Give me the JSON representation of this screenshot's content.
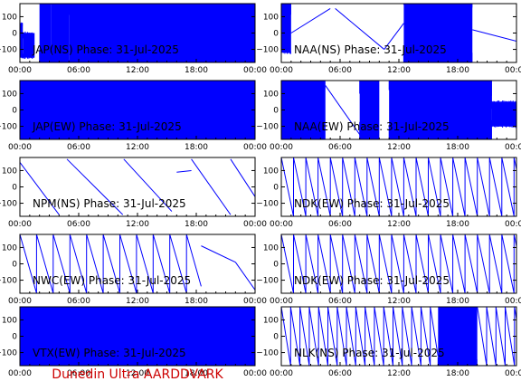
{
  "footer": "Dunedin Ultra AARDDVARK",
  "colors": {
    "trace": "#0000ff",
    "axis": "#000000",
    "footer": "#cc0000",
    "background": "#ffffff"
  },
  "chart_data": [
    {
      "type": "line",
      "title": "JAP(NS) Phase: 31-Jul-2025",
      "ylim": [
        -180,
        180
      ],
      "yticks": [
        100,
        0,
        -100
      ],
      "xticks": [
        "00:00",
        "06:00",
        "12:00",
        "18:00",
        "00:00"
      ],
      "series": [
        {
          "segments": [
            {
              "kind": "noise",
              "x": [
                0.0,
                0.3
              ],
              "y": [
                -150,
                60
              ]
            },
            {
              "kind": "noise",
              "x": [
                0.3,
                1.5
              ],
              "y": [
                -150,
                0
              ]
            },
            {
              "kind": "noise",
              "x": [
                2.0,
                3.2
              ],
              "y": [
                -180,
                180
              ]
            },
            {
              "kind": "noise",
              "x": [
                3.2,
                5.0
              ],
              "y": [
                -180,
                180
              ]
            },
            {
              "kind": "noise",
              "x": [
                5.0,
                24.0
              ],
              "y": [
                -180,
                180
              ]
            }
          ]
        }
      ]
    },
    {
      "type": "line",
      "title": "NAA(NS) Phase: 31-Jul-2025",
      "ylim": [
        -180,
        180
      ],
      "yticks": [
        100,
        0,
        -100
      ],
      "xticks": [
        "00:00",
        "06:00",
        "12:00",
        "18:00",
        "00:00"
      ],
      "series": [
        {
          "segments": [
            {
              "kind": "noise",
              "x": [
                0.0,
                1.0
              ],
              "y": [
                -120,
                180
              ]
            },
            {
              "kind": "line",
              "x": [
                1.0,
                5.0
              ],
              "y": [
                0,
                150
              ]
            },
            {
              "kind": "line",
              "x": [
                5.5,
                10.5
              ],
              "y": [
                150,
                -100
              ]
            },
            {
              "kind": "line",
              "x": [
                10.5,
                12.5
              ],
              "y": [
                -100,
                60
              ]
            },
            {
              "kind": "noise",
              "x": [
                12.5,
                19.5
              ],
              "y": [
                -180,
                180
              ]
            },
            {
              "kind": "line",
              "x": [
                19.5,
                24.0
              ],
              "y": [
                20,
                -50
              ]
            }
          ]
        }
      ]
    },
    {
      "type": "line",
      "title": "JAP(EW) Phase: 31-Jul-2025",
      "ylim": [
        -180,
        180
      ],
      "yticks": [
        100,
        0,
        -100
      ],
      "xticks": [
        "00:00",
        "06:00",
        "12:00",
        "18:00",
        "00:00"
      ],
      "series": [
        {
          "segments": [
            {
              "kind": "noise",
              "x": [
                0.0,
                24.0
              ],
              "y": [
                -180,
                180
              ]
            }
          ]
        }
      ]
    },
    {
      "type": "line",
      "title": "NAA(EW) Phase: 31-Jul-2025",
      "ylim": [
        -180,
        180
      ],
      "yticks": [
        100,
        0,
        -100
      ],
      "xticks": [
        "00:00",
        "06:00",
        "12:00",
        "18:00",
        "00:00"
      ],
      "series": [
        {
          "segments": [
            {
              "kind": "noise",
              "x": [
                0.0,
                4.5
              ],
              "y": [
                -180,
                180
              ]
            },
            {
              "kind": "line",
              "x": [
                4.5,
                8.0
              ],
              "y": [
                150,
                -150
              ]
            },
            {
              "kind": "noise",
              "x": [
                8.0,
                10.0
              ],
              "y": [
                -180,
                180
              ]
            },
            {
              "kind": "noise",
              "x": [
                11.0,
                21.5
              ],
              "y": [
                -180,
                180
              ]
            },
            {
              "kind": "noise",
              "x": [
                21.5,
                24.0
              ],
              "y": [
                -100,
                50
              ]
            }
          ]
        }
      ]
    },
    {
      "type": "line",
      "title": "NPM(NS) Phase: 31-Jul-2025",
      "ylim": [
        -180,
        180
      ],
      "yticks": [
        100,
        0,
        -100
      ],
      "xticks": [
        "00:00",
        "06:00",
        "12:00",
        "18:00",
        "00:00"
      ],
      "series": [
        {
          "segments": [
            {
              "kind": "line",
              "x": [
                0.0,
                4.0
              ],
              "y": [
                150,
                -170
              ]
            },
            {
              "kind": "line",
              "x": [
                4.8,
                10.5
              ],
              "y": [
                170,
                -170
              ]
            },
            {
              "kind": "line",
              "x": [
                10.6,
                15.5
              ],
              "y": [
                170,
                -150
              ]
            },
            {
              "kind": "line",
              "x": [
                16.0,
                17.5
              ],
              "y": [
                90,
                100
              ]
            },
            {
              "kind": "line",
              "x": [
                17.5,
                21.5
              ],
              "y": [
                170,
                -170
              ]
            },
            {
              "kind": "line",
              "x": [
                21.5,
                24.0
              ],
              "y": [
                170,
                -60
              ]
            }
          ]
        }
      ]
    },
    {
      "type": "line",
      "title": "NDK(EW) Phase: 31-Jul-2025",
      "ylim": [
        -180,
        180
      ],
      "yticks": [
        100,
        0,
        -100
      ],
      "xticks": [
        "00:00",
        "06:00",
        "12:00",
        "18:00",
        "00:00"
      ],
      "series": [
        {
          "segments": [
            {
              "kind": "saw",
              "x": [
                0.0,
                24.0
              ],
              "y": [
                -180,
                180
              ],
              "period": 1.25
            }
          ]
        }
      ]
    },
    {
      "type": "line",
      "title": "NWC(EW) Phase: 31-Jul-2025",
      "ylim": [
        -180,
        180
      ],
      "yticks": [
        100,
        0,
        -100
      ],
      "xticks": [
        "00:00",
        "06:00",
        "12:00",
        "18:00",
        "00:00"
      ],
      "series": [
        {
          "segments": [
            {
              "kind": "saw",
              "x": [
                0.0,
                18.5
              ],
              "y": [
                -180,
                180
              ],
              "period": 1.7
            },
            {
              "kind": "line",
              "x": [
                18.5,
                22.0
              ],
              "y": [
                110,
                10
              ]
            },
            {
              "kind": "line",
              "x": [
                22.0,
                24.0
              ],
              "y": [
                10,
                -160
              ]
            }
          ]
        }
      ]
    },
    {
      "type": "line",
      "title": "NDK(EW) Phase: 31-Jul-2025",
      "ylim": [
        -180,
        180
      ],
      "yticks": [
        100,
        0,
        -100
      ],
      "xticks": [
        "00:00",
        "06:00",
        "12:00",
        "18:00",
        "00:00"
      ],
      "series": [
        {
          "segments": [
            {
              "kind": "saw",
              "x": [
                0.0,
                24.0
              ],
              "y": [
                -180,
                180
              ],
              "period": 1.25
            }
          ]
        }
      ]
    },
    {
      "type": "line",
      "title": "VTX(EW) Phase: 31-Jul-2025",
      "ylim": [
        -180,
        180
      ],
      "yticks": [
        100,
        0,
        -100
      ],
      "xticks": [
        "00:00",
        "06:00",
        "12:00",
        "18:00",
        "00:00"
      ],
      "series": [
        {
          "segments": [
            {
              "kind": "noise",
              "x": [
                0.0,
                24.0
              ],
              "y": [
                -180,
                180
              ]
            }
          ]
        }
      ]
    },
    {
      "type": "line",
      "title": "NLK(NS) Phase: 31-Jul-2025",
      "ylim": [
        -180,
        180
      ],
      "yticks": [
        100,
        0,
        -100
      ],
      "xticks": [
        "00:00",
        "06:00",
        "12:00",
        "18:00",
        "00:00"
      ],
      "series": [
        {
          "segments": [
            {
              "kind": "saw",
              "x": [
                0.0,
                16.0
              ],
              "y": [
                -180,
                180
              ],
              "period": 0.95
            },
            {
              "kind": "noise",
              "x": [
                16.0,
                20.0
              ],
              "y": [
                -180,
                180
              ]
            },
            {
              "kind": "saw",
              "x": [
                20.0,
                24.0
              ],
              "y": [
                -180,
                180
              ],
              "period": 0.95
            }
          ]
        }
      ]
    }
  ]
}
